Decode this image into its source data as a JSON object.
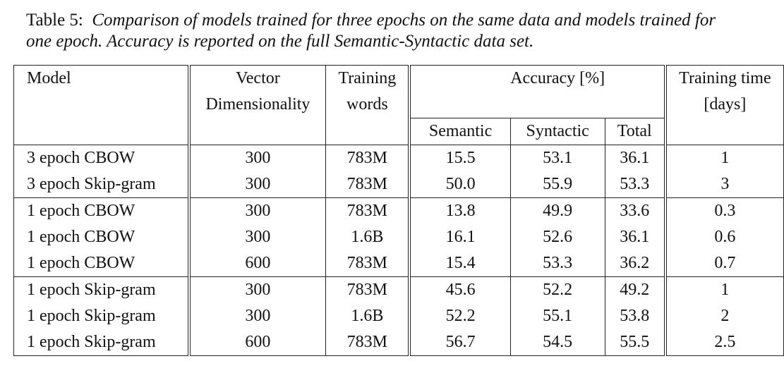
{
  "caption": {
    "label": "Table 5:",
    "line1": "Comparison of models trained for three epochs on the same data and models trained for",
    "line2": "one epoch. Accuracy is reported on the full Semantic-Syntactic data set."
  },
  "headers": {
    "model": "Model",
    "vector_1": "Vector",
    "vector_2": "Dimensionality",
    "training_1": "Training",
    "training_2": "words",
    "accuracy": "Accuracy [%]",
    "time_1": "Training time",
    "time_2": "[days]",
    "semantic": "Semantic",
    "syntactic": "Syntactic",
    "total": "Total"
  },
  "rows": [
    {
      "model": "3 epoch CBOW",
      "dim": "300",
      "words": "783M",
      "semantic": "15.5",
      "syntactic": "53.1",
      "total": "36.1",
      "time": "1"
    },
    {
      "model": "3 epoch Skip-gram",
      "dim": "300",
      "words": "783M",
      "semantic": "50.0",
      "syntactic": "55.9",
      "total": "53.3",
      "time": "3"
    },
    {
      "model": "1 epoch CBOW",
      "dim": "300",
      "words": "783M",
      "semantic": "13.8",
      "syntactic": "49.9",
      "total": "33.6",
      "time": "0.3"
    },
    {
      "model": "1 epoch CBOW",
      "dim": "300",
      "words": "1.6B",
      "semantic": "16.1",
      "syntactic": "52.6",
      "total": "36.1",
      "time": "0.6"
    },
    {
      "model": "1 epoch CBOW",
      "dim": "600",
      "words": "783M",
      "semantic": "15.4",
      "syntactic": "53.3",
      "total": "36.2",
      "time": "0.7"
    },
    {
      "model": "1 epoch Skip-gram",
      "dim": "300",
      "words": "783M",
      "semantic": "45.6",
      "syntactic": "52.2",
      "total": "49.2",
      "time": "1"
    },
    {
      "model": "1 epoch Skip-gram",
      "dim": "300",
      "words": "1.6B",
      "semantic": "52.2",
      "syntactic": "55.1",
      "total": "53.8",
      "time": "2"
    },
    {
      "model": "1 epoch Skip-gram",
      "dim": "600",
      "words": "783M",
      "semantic": "56.7",
      "syntactic": "54.5",
      "total": "55.5",
      "time": "2.5"
    }
  ]
}
